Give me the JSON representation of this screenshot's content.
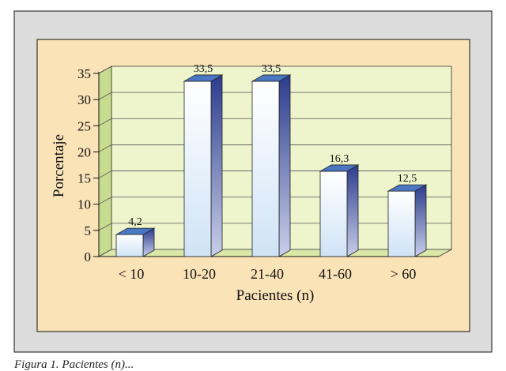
{
  "chart_data": {
    "type": "bar",
    "title": "",
    "xlabel": "Pacientes (n)",
    "ylabel": "Porcentaje",
    "categories": [
      "< 10",
      "10-20",
      "21-40",
      "41-60",
      "> 60"
    ],
    "values": [
      4.2,
      33.5,
      33.5,
      16.3,
      12.5
    ],
    "value_labels": [
      "4,2",
      "33,5",
      "33,5",
      "16,3",
      "12,5"
    ],
    "ylim": [
      0,
      35
    ],
    "yticks": [
      0,
      5,
      10,
      15,
      20,
      25,
      30,
      35
    ],
    "grid": true,
    "legend": "none",
    "style": "3d"
  },
  "caption": "Figura 1. Pacientes (n)...",
  "colors": {
    "outer_frame": "#dcdcdc",
    "panel": "#fbe3b8",
    "wall": "#eef4cc",
    "side_wall": "#c8dc90",
    "floor": "#dce8a8",
    "bar_front_top": "#ffffff",
    "bar_front_bottom": "#cfe3f6",
    "bar_side_top": "#2c3c8c",
    "bar_side_bottom": "#c9cfe9",
    "bar_top": "#4a76c2",
    "grid": "#555555"
  }
}
